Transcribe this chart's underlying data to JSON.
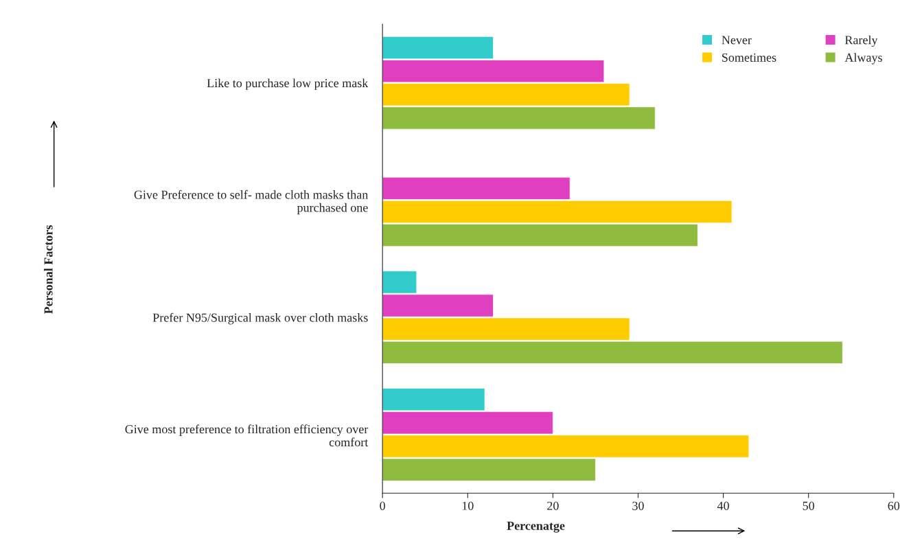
{
  "chart_data": {
    "type": "bar",
    "orientation": "horizontal",
    "xlabel": "Percenatge",
    "annotations": [
      "Personal Factors"
    ],
    "categories": [
      "Like to purchase low price mask",
      "Give Preference to self- made cloth masks than\npurchased one",
      "Prefer N95/Surgical mask over cloth masks",
      "Give most preference to filtration efficiency over\ncomfort"
    ],
    "series": [
      {
        "name": "Never",
        "color": "#33cccc",
        "values": [
          13,
          null,
          4,
          12
        ]
      },
      {
        "name": "Rarely",
        "color": "#e040c0",
        "values": [
          26,
          22,
          13,
          20
        ]
      },
      {
        "name": "Sometimes",
        "color": "#ffcc00",
        "values": [
          29,
          41,
          29,
          43
        ]
      },
      {
        "name": "Always",
        "color": "#8fbc3f",
        "values": [
          32,
          37,
          54,
          25
        ]
      }
    ],
    "xlim": [
      0,
      60
    ],
    "xticks": [
      0,
      10,
      20,
      30,
      40,
      50,
      60
    ],
    "grid": false,
    "legend": "top right"
  }
}
